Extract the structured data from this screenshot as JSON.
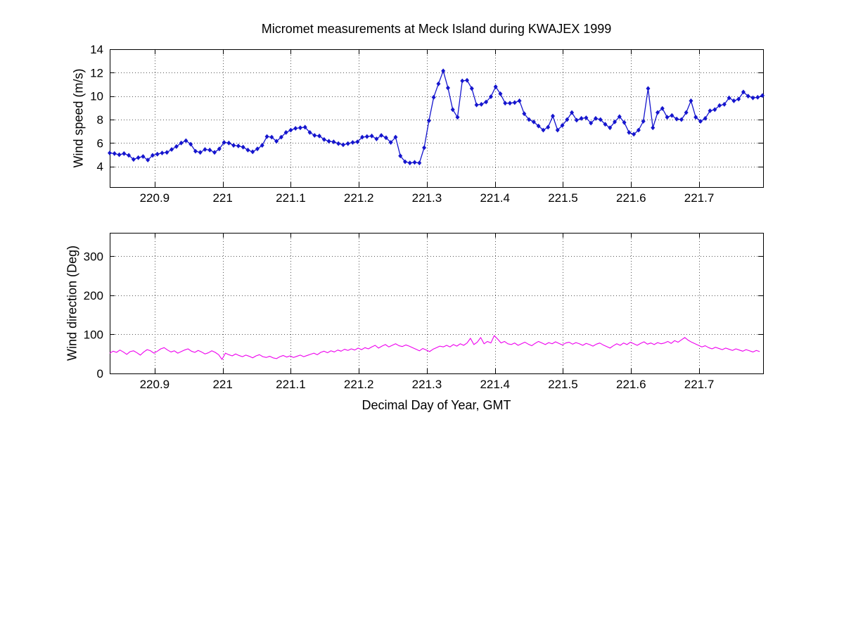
{
  "title": "Micromet measurements at Meck Island during KWAJEX 1999",
  "xlabel": "Decimal Day of Year, GMT",
  "colors": {
    "wind_speed_line": "#1515CE",
    "wind_direction_line": "#EE00EE",
    "axis": "#000000",
    "grid": "#555555",
    "background": "#ffffff",
    "text": "#000000"
  },
  "chart_data": [
    {
      "type": "line",
      "name": "wind-speed",
      "ylabel": "Wind speed (m/s)",
      "color": "#1515CE",
      "marker": "diamond",
      "grid": true,
      "xlim": [
        220.834,
        221.794
      ],
      "ylim": [
        2.24,
        14
      ],
      "xticks": [
        220.9,
        221.0,
        221.1,
        221.2,
        221.3,
        221.4,
        221.5,
        221.6,
        221.7
      ],
      "xtick_labels": [
        "220.9",
        "221",
        "221.1",
        "221.2",
        "221.3",
        "221.4",
        "221.5",
        "221.6",
        "221.7"
      ],
      "yticks": [
        4,
        6,
        8,
        10,
        12,
        14
      ],
      "ytick_labels": [
        "4",
        "6",
        "8",
        "10",
        "12",
        "14"
      ],
      "x_start": 220.834,
      "x_step": 0.007,
      "values": [
        5.15,
        5.1,
        5.0,
        5.1,
        4.95,
        4.6,
        4.75,
        4.85,
        4.55,
        4.95,
        5.05,
        5.15,
        5.2,
        5.45,
        5.7,
        6.0,
        6.2,
        5.9,
        5.3,
        5.2,
        5.45,
        5.4,
        5.2,
        5.5,
        6.05,
        6.0,
        5.8,
        5.75,
        5.65,
        5.4,
        5.25,
        5.5,
        5.8,
        6.55,
        6.5,
        6.15,
        6.5,
        6.9,
        7.1,
        7.25,
        7.3,
        7.35,
        6.9,
        6.65,
        6.6,
        6.3,
        6.15,
        6.1,
        5.95,
        5.85,
        5.95,
        6.05,
        6.1,
        6.5,
        6.55,
        6.6,
        6.35,
        6.65,
        6.45,
        6.05,
        6.5,
        4.9,
        4.4,
        4.3,
        4.35,
        4.3,
        5.6,
        7.9,
        9.9,
        11.05,
        12.15,
        10.7,
        8.85,
        8.2,
        11.3,
        11.35,
        10.65,
        9.25,
        9.3,
        9.5,
        9.95,
        10.8,
        10.2,
        9.4,
        9.4,
        9.45,
        9.6,
        8.5,
        8.0,
        7.8,
        7.45,
        7.1,
        7.35,
        8.3,
        7.1,
        7.5,
        8.0,
        8.6,
        7.95,
        8.1,
        8.15,
        7.7,
        8.1,
        8.0,
        7.6,
        7.3,
        7.8,
        8.25,
        7.75,
        6.9,
        6.75,
        7.1,
        7.85,
        10.65,
        7.3,
        8.6,
        8.95,
        8.2,
        8.35,
        8.05,
        8.0,
        8.6,
        9.6,
        8.2,
        7.85,
        8.1,
        8.75,
        8.85,
        9.2,
        9.3,
        9.85,
        9.6,
        9.75,
        10.35,
        10.0,
        9.85,
        9.9,
        10.05
      ]
    },
    {
      "type": "line",
      "name": "wind-direction",
      "ylabel": "Wind direction (Deg)",
      "color": "#EE00EE",
      "marker": "none",
      "grid": true,
      "xlim": [
        220.834,
        221.794
      ],
      "ylim": [
        0,
        360
      ],
      "xticks": [
        220.9,
        221.0,
        221.1,
        221.2,
        221.3,
        221.4,
        221.5,
        221.6,
        221.7
      ],
      "xtick_labels": [
        "220.9",
        "221",
        "221.1",
        "221.2",
        "221.3",
        "221.4",
        "221.5",
        "221.6",
        "221.7"
      ],
      "yticks": [
        0,
        100,
        200,
        300
      ],
      "ytick_labels": [
        "0",
        "100",
        "200",
        "300"
      ],
      "x_start": 220.834,
      "x_step": 0.005,
      "values": [
        52,
        57,
        54,
        60,
        55,
        49,
        56,
        58,
        53,
        47,
        55,
        61,
        58,
        52,
        57,
        63,
        66,
        60,
        55,
        58,
        52,
        56,
        60,
        63,
        57,
        54,
        59,
        55,
        50,
        53,
        58,
        54,
        48,
        36,
        52,
        48,
        45,
        50,
        46,
        43,
        47,
        44,
        40,
        45,
        48,
        43,
        41,
        44,
        40,
        38,
        43,
        46,
        42,
        45,
        41,
        44,
        47,
        43,
        46,
        49,
        52,
        48,
        54,
        57,
        53,
        58,
        55,
        60,
        57,
        62,
        59,
        63,
        60,
        65,
        61,
        66,
        63,
        68,
        72,
        65,
        70,
        74,
        68,
        72,
        76,
        71,
        69,
        73,
        70,
        66,
        62,
        58,
        64,
        60,
        56,
        62,
        66,
        70,
        68,
        72,
        68,
        74,
        70,
        76,
        72,
        78,
        90,
        74,
        80,
        92,
        76,
        82,
        78,
        97,
        88,
        78,
        82,
        76,
        74,
        78,
        72,
        76,
        80,
        75,
        71,
        77,
        82,
        78,
        74,
        79,
        76,
        81,
        77,
        73,
        78,
        80,
        75,
        79,
        76,
        72,
        77,
        74,
        70,
        75,
        78,
        73,
        69,
        65,
        71,
        76,
        72,
        78,
        74,
        80,
        76,
        72,
        77,
        81,
        75,
        78,
        74,
        79,
        76,
        78,
        82,
        77,
        84,
        80,
        86,
        92,
        85,
        80,
        76,
        72,
        68,
        71,
        66,
        63,
        67,
        64,
        61,
        65,
        62,
        59,
        63,
        60,
        57,
        61,
        58,
        55,
        59,
        56
      ]
    }
  ]
}
